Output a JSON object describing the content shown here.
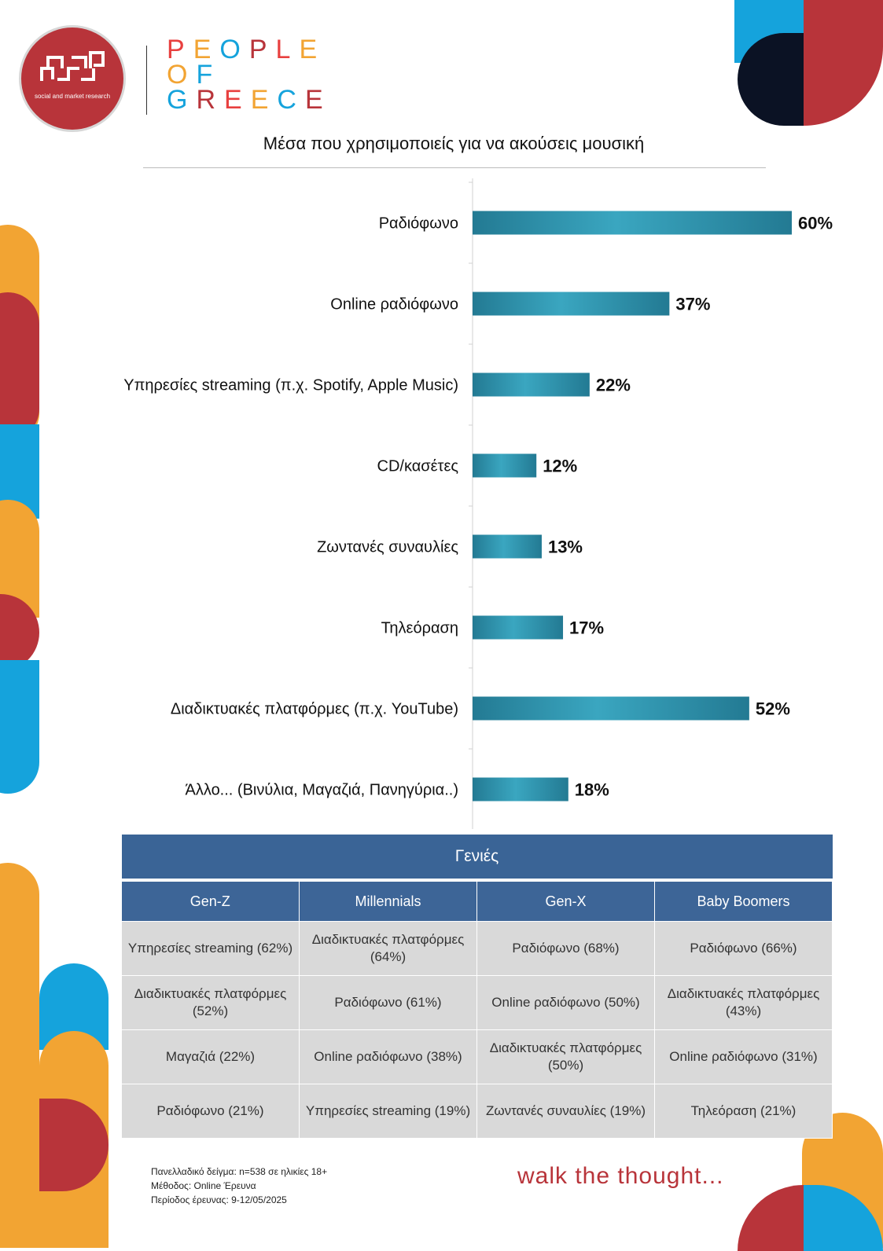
{
  "header": {
    "logo_tagline": "social and market research",
    "brand_lines": [
      "PEOPLE",
      "OF",
      "GREECE"
    ],
    "brand_colors": [
      "#e8403f",
      "#f2a433",
      "#15a3dc",
      "#b8343a"
    ]
  },
  "chart_data": {
    "type": "bar",
    "orientation": "horizontal",
    "title": "Μέσα που χρησιμοποιείς για να ακούσεις μουσική",
    "categories": [
      "Ραδιόφωνο",
      "Online ραδιόφωνο",
      "Υπηρεσίες streaming (π.χ. Spotify, Apple Music)",
      "CD/κασέτες",
      "Ζωντανές συναυλίες",
      "Τηλεόραση",
      "Διαδικτυακές πλατφόρμες (π.χ. YouTube)",
      "Άλλο... (Βινύλια, Μαγαζιά, Πανηγύρια..)"
    ],
    "values": [
      60,
      37,
      22,
      12,
      13,
      17,
      52,
      18
    ],
    "value_labels": [
      "60%",
      "37%",
      "22%",
      "12%",
      "13%",
      "17%",
      "52%",
      "18%"
    ],
    "xlim": [
      0,
      60
    ],
    "bar_color": "#2f8fa8",
    "grid": false
  },
  "table": {
    "title": "Γενιές",
    "columns": [
      "Gen-Z",
      "Millennials",
      "Gen-X",
      "Baby Boomers"
    ],
    "rows": [
      [
        "Υπηρεσίες streaming (62%)",
        "Διαδικτυακές πλατφόρμες (64%)",
        "Ραδιόφωνο (68%)",
        "Ραδιόφωνο (66%)"
      ],
      [
        "Διαδικτυακές πλατφόρμες (52%)",
        "Ραδιόφωνο (61%)",
        "Online ραδιόφωνο (50%)",
        "Διαδικτυακές πλατφόρμες (43%)"
      ],
      [
        "Μαγαζιά (22%)",
        "Online ραδιόφωνο (38%)",
        "Διαδικτυακές πλατφόρμες (50%)",
        "Online ραδιόφωνο (31%)"
      ],
      [
        "Ραδιόφωνο (21%)",
        "Υπηρεσίες streaming (19%)",
        "Ζωντανές συναυλίες (19%)",
        "Τηλεόραση (21%)"
      ]
    ]
  },
  "footer": {
    "notes": [
      "Πανελλαδικό δείγμα: n=538 σε ηλικίες 18+",
      "Μέθοδος: Online Έρευνα",
      "Περίοδος έρευνας: 9-12/05/2025"
    ],
    "slogan": "walk the thought..."
  }
}
